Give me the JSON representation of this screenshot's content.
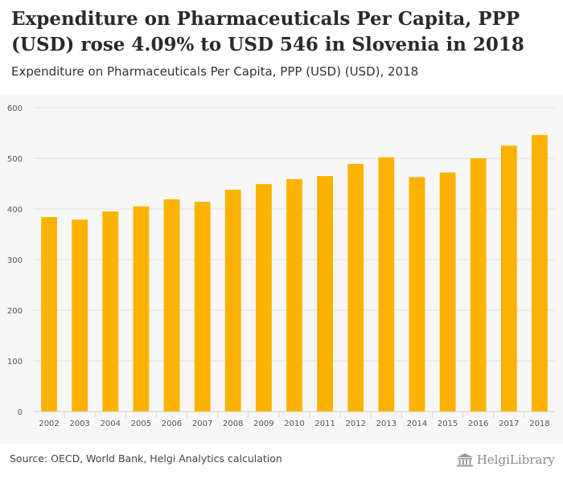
{
  "title": "Expenditure on Pharmaceuticals Per Capita, PPP (USD) rose 4.09% to USD 546 in Slovenia in 2018",
  "subtitle": "Expenditure on Pharmaceuticals Per Capita, PPP (USD) (USD), 2018",
  "source": "Source: OECD, World Bank, Helgi Analytics calculation",
  "logo_text": "HelgiLibrary",
  "colors": {
    "bar": "#FBB300",
    "grid": "#e3e3e3",
    "background": "#f7f7f7"
  },
  "chart_data": {
    "type": "bar",
    "categories": [
      "2002",
      "2003",
      "2004",
      "2005",
      "2006",
      "2007",
      "2008",
      "2009",
      "2010",
      "2011",
      "2012",
      "2013",
      "2014",
      "2015",
      "2016",
      "2017",
      "2018"
    ],
    "values": [
      384,
      379,
      395,
      405,
      419,
      414,
      438,
      449,
      459,
      465,
      489,
      502,
      463,
      472,
      500,
      525,
      546
    ],
    "yticks": [
      0,
      100,
      200,
      300,
      400,
      500,
      600
    ],
    "ylim": [
      0,
      600
    ],
    "grid": true,
    "title": "Expenditure on Pharmaceuticals Per Capita, PPP (USD) rose 4.09% to USD 546 in Slovenia in 2018"
  }
}
